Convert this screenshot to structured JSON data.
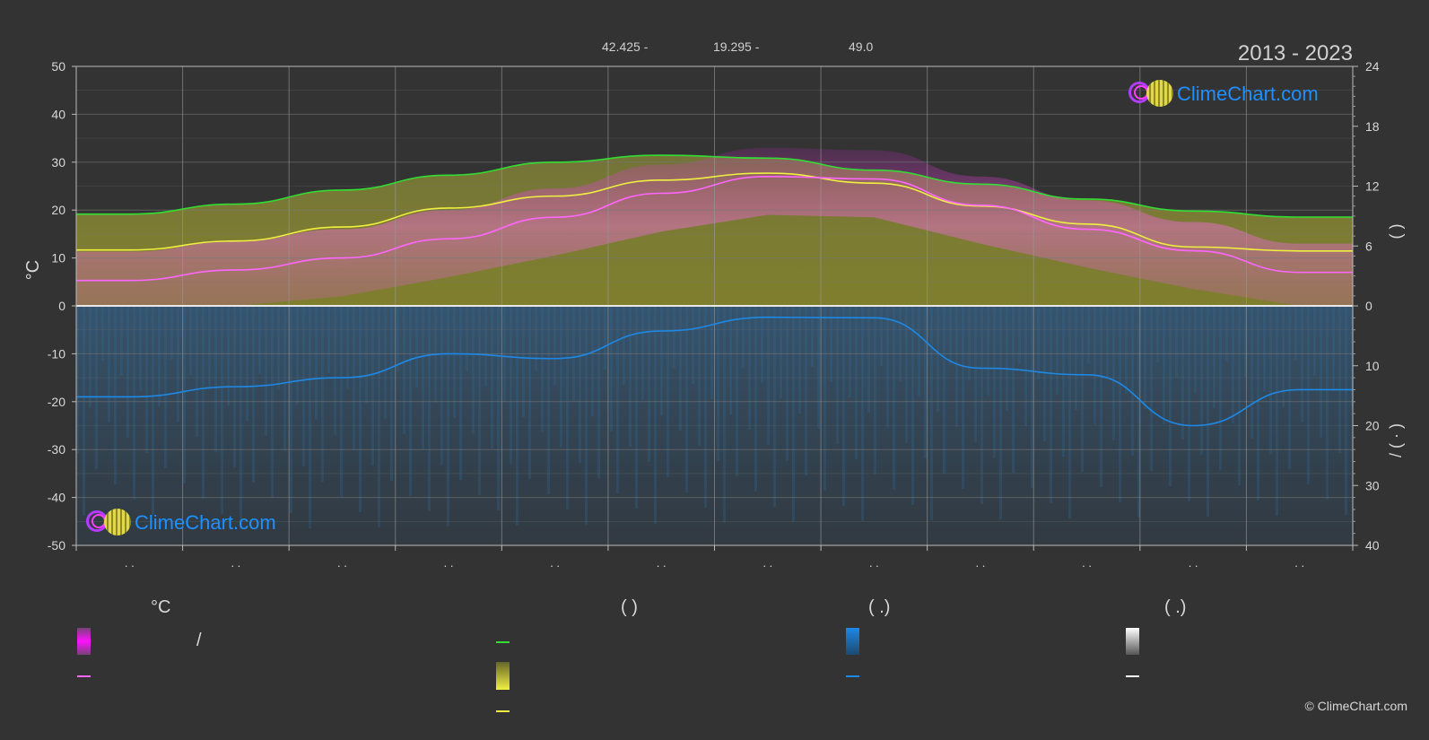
{
  "header": {
    "latitude": "42.425 -",
    "longitude": "19.295 -",
    "elevation": "49.0",
    "period": "2013 - 2023"
  },
  "logo_text": "ClimeChart.com",
  "copyright": "© ClimeChart.com",
  "legend": {
    "col1_header": "°C",
    "col2_header": "(          )",
    "col3_header": "(   .)",
    "col4_header": "(   .)",
    "slash_label": "/"
  },
  "colors": {
    "daylight": "#33dd33",
    "sunshine": "#f0f040",
    "temp_mean": "#ff66ff",
    "rain": "#1e88e5",
    "snow": "#ffffff",
    "temp_band": "#e020e0",
    "sun_band": "#c8c840"
  },
  "chart_data": {
    "type": "line",
    "months": 12,
    "x_tick_labels": ". .",
    "y_left": {
      "label": "°C",
      "range": [
        -50,
        50
      ],
      "ticks": [
        50,
        40,
        30,
        20,
        10,
        0,
        -10,
        -20,
        -30,
        -40,
        -50
      ]
    },
    "y_right_top": {
      "label": "(     )",
      "range": [
        0,
        24
      ],
      "ticks": [
        24,
        18,
        12,
        6,
        0
      ]
    },
    "y_right_bottom": {
      "label": "/   (  ·  )",
      "range": [
        0,
        40
      ],
      "ticks": [
        0,
        10,
        20,
        30,
        40
      ]
    },
    "grid": true,
    "series": [
      {
        "name_key": "daylight_hours",
        "axis": "right_top",
        "values": [
          9.2,
          10.2,
          11.6,
          13.1,
          14.4,
          15.1,
          14.8,
          13.6,
          12.2,
          10.7,
          9.5,
          8.9
        ]
      },
      {
        "name_key": "sunshine_hours",
        "axis": "right_top",
        "values": [
          5.6,
          6.5,
          7.9,
          9.8,
          11.0,
          12.6,
          13.3,
          12.3,
          10.0,
          8.2,
          5.9,
          5.5
        ]
      },
      {
        "name_key": "mean_temperature",
        "axis": "left",
        "values": [
          5.3,
          7.5,
          10.0,
          14.0,
          18.5,
          23.5,
          27.0,
          26.5,
          21.0,
          16.0,
          11.5,
          7.0
        ]
      },
      {
        "name_key": "precipitation",
        "axis": "right_bottom",
        "values": [
          15.2,
          13.5,
          12.0,
          8.0,
          8.8,
          4.2,
          1.9,
          2.0,
          10.4,
          11.5,
          20.0,
          14.0
        ]
      }
    ]
  }
}
